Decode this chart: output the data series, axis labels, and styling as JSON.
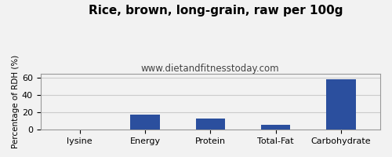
{
  "title": "Rice, brown, long-grain, raw per 100g",
  "subtitle": "www.dietandfitnesstoday.com",
  "categories": [
    "lysine",
    "Energy",
    "Protein",
    "Total-Fat",
    "Carbohydrate"
  ],
  "values": [
    0,
    18,
    13,
    6,
    59
  ],
  "bar_color": "#2b4f9e",
  "ylabel": "Percentage of RDH (%)",
  "ylim": [
    0,
    65
  ],
  "yticks": [
    0,
    20,
    40,
    60
  ],
  "background_color": "#f2f2f2",
  "plot_bg_color": "#f2f2f2",
  "grid_color": "#cccccc",
  "title_fontsize": 11,
  "subtitle_fontsize": 8.5,
  "label_fontsize": 7.5,
  "tick_fontsize": 8,
  "border_color": "#999999"
}
